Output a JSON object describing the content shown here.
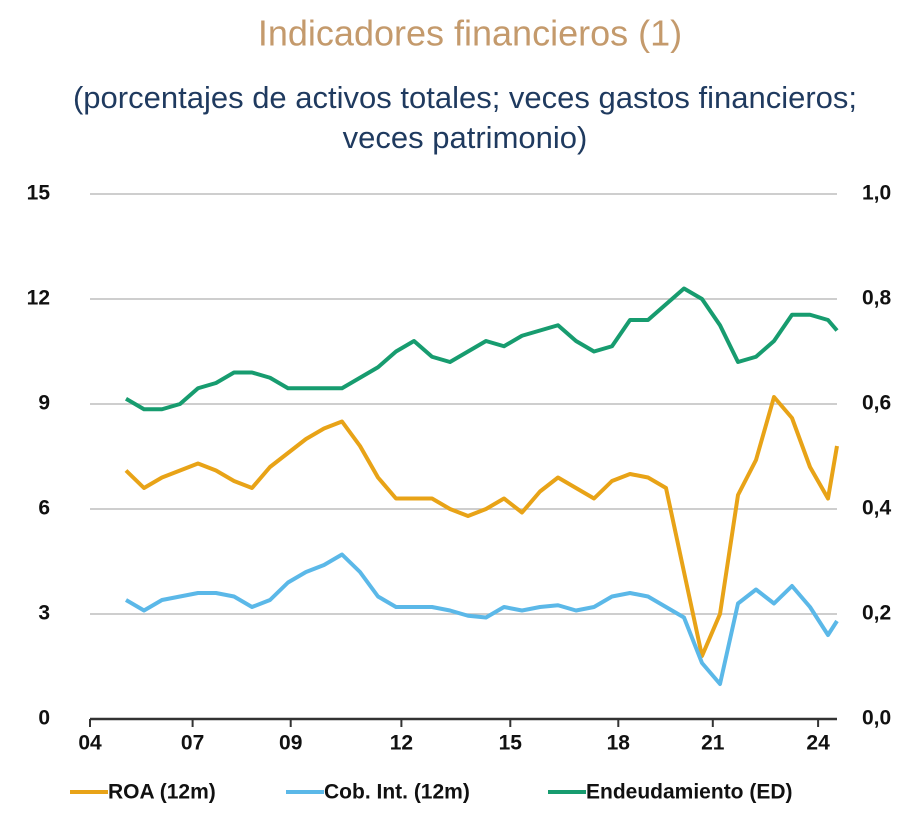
{
  "chart_data": {
    "type": "line",
    "title": "Indicadores financieros (1)",
    "subtitle": "(porcentajes de activos totales; veces gastos financieros; veces patrimonio)",
    "x": [
      4,
      6,
      8,
      10,
      12,
      14,
      16,
      18,
      20,
      22,
      24,
      26,
      28,
      30,
      32,
      34,
      36,
      38,
      40,
      42,
      44,
      46,
      48,
      50,
      52,
      54,
      56,
      58,
      60,
      62,
      64,
      66,
      68,
      70,
      72,
      74,
      76,
      78,
      80,
      82,
      83
    ],
    "xlim": [
      0,
      83
    ],
    "xticks": [
      {
        "value": 0,
        "label": "04"
      },
      {
        "value": 11.4,
        "label": "07"
      },
      {
        "value": 22.3,
        "label": "09"
      },
      {
        "value": 34.6,
        "label": "12"
      },
      {
        "value": 46.7,
        "label": "15"
      },
      {
        "value": 58.7,
        "label": "18"
      },
      {
        "value": 69.2,
        "label": "21"
      },
      {
        "value": 80.9,
        "label": "24"
      }
    ],
    "ylim": [
      0,
      15
    ],
    "yticks": [
      0,
      3,
      6,
      9,
      12,
      15
    ],
    "y2lim": [
      0,
      1.0
    ],
    "y2ticks": [
      {
        "value": 0,
        "label": "0,0"
      },
      {
        "value": 0.2,
        "label": "0,2"
      },
      {
        "value": 0.4,
        "label": "0,4"
      },
      {
        "value": 0.6,
        "label": "0,6"
      },
      {
        "value": 0.8,
        "label": "0,8"
      },
      {
        "value": 1.0,
        "label": "1,0"
      }
    ],
    "grid": true,
    "legend": "bottom",
    "series": [
      {
        "name": "ROA (12m)",
        "color": "#e8a317",
        "values": [
          7.1,
          6.6,
          6.9,
          7.1,
          7.3,
          7.1,
          6.8,
          6.6,
          7.2,
          7.6,
          8.0,
          8.3,
          8.5,
          7.8,
          6.9,
          6.3,
          6.3,
          6.3,
          6.0,
          5.8,
          6.0,
          6.3,
          5.9,
          6.5,
          6.9,
          6.6,
          6.3,
          6.8,
          7.0,
          6.9,
          6.6,
          4.2,
          1.8,
          3.0,
          6.4,
          7.4,
          9.2,
          8.6,
          7.2,
          6.3,
          7.8
        ]
      },
      {
        "name": "Cob. Int. (12m)",
        "color": "#5bb8e8",
        "values": [
          3.4,
          3.1,
          3.4,
          3.5,
          3.6,
          3.6,
          3.5,
          3.2,
          3.4,
          3.9,
          4.2,
          4.4,
          4.7,
          4.2,
          3.5,
          3.2,
          3.2,
          3.2,
          3.1,
          2.95,
          2.9,
          3.2,
          3.1,
          3.2,
          3.25,
          3.1,
          3.2,
          3.5,
          3.6,
          3.5,
          3.2,
          2.9,
          1.6,
          1.0,
          3.3,
          3.7,
          3.3,
          3.8,
          3.2,
          2.4,
          2.8
        ]
      },
      {
        "name": "Endeudamiento (ED)",
        "color": "#179c6f",
        "axis": "y2",
        "values": [
          0.61,
          0.59,
          0.59,
          0.6,
          0.63,
          0.64,
          0.66,
          0.66,
          0.65,
          0.63,
          0.63,
          0.63,
          0.63,
          0.65,
          0.67,
          0.7,
          0.72,
          0.69,
          0.68,
          0.7,
          0.72,
          0.71,
          0.73,
          0.74,
          0.75,
          0.72,
          0.7,
          0.71,
          0.76,
          0.76,
          0.79,
          0.82,
          0.8,
          0.75,
          0.68,
          0.69,
          0.72,
          0.77,
          0.77,
          0.76,
          0.74
        ]
      }
    ]
  }
}
